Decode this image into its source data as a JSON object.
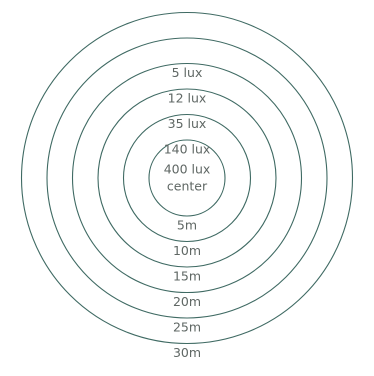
{
  "colors": {
    "ring_stroke": "#3f6a63",
    "label_text": "#5f6764",
    "background": "#ffffff"
  },
  "center": {
    "lux_label": "400 lux",
    "caption": "center"
  },
  "rings": [
    {
      "distance_label": "5m",
      "lux_label": "140 lux"
    },
    {
      "distance_label": "10m",
      "lux_label": "35 lux"
    },
    {
      "distance_label": "15m",
      "lux_label": "12 lux"
    },
    {
      "distance_label": "20m",
      "lux_label": "5 lux"
    },
    {
      "distance_label": "25m",
      "lux_label": ""
    },
    {
      "distance_label": "30m",
      "lux_label": ""
    }
  ]
}
